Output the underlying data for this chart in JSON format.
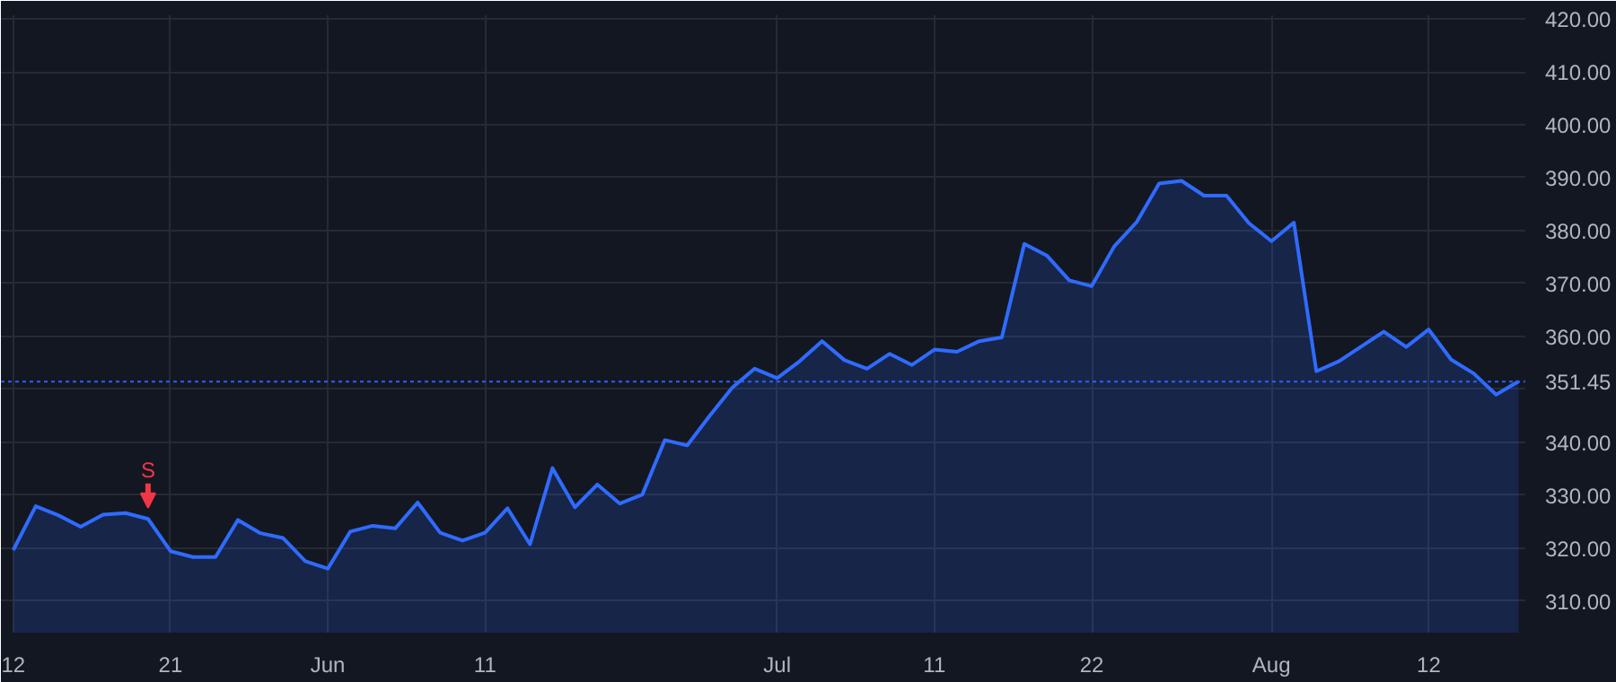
{
  "chart_data": {
    "type": "area",
    "categories": [
      "12",
      null,
      null,
      null,
      null,
      null,
      null,
      "21",
      null,
      null,
      null,
      null,
      null,
      null,
      "Jun",
      null,
      null,
      null,
      null,
      null,
      null,
      "11",
      null,
      null,
      null,
      null,
      null,
      null,
      null,
      null,
      null,
      null,
      null,
      null,
      "Jul",
      null,
      null,
      null,
      null,
      null,
      null,
      "11",
      null,
      null,
      null,
      null,
      null,
      null,
      "22",
      null,
      null,
      null,
      null,
      null,
      null,
      null,
      "Aug",
      null,
      null,
      null,
      null,
      null,
      null,
      "12",
      null,
      null,
      null,
      null
    ],
    "series": [
      {
        "color": "#2f6bff",
        "values": [
          319.6,
          327.9,
          326.2,
          324.0,
          326.3,
          326.6,
          325.5,
          319.4,
          318.3,
          318.3,
          325.3,
          322.8,
          321.9,
          317.5,
          316.1,
          323.1,
          324.2,
          323.7,
          328.6,
          322.9,
          321.4,
          322.9,
          327.5,
          320.7,
          335.1,
          327.7,
          332.0,
          328.4,
          330.1,
          340.4,
          339.4,
          345.0,
          350.3,
          353.9,
          352.1,
          355.3,
          359.1,
          355.5,
          353.9,
          356.7,
          354.6,
          357.5,
          357.1,
          359.1,
          359.8,
          377.5,
          375.3,
          370.6,
          369.5,
          377.0,
          381.6,
          388.9,
          389.4,
          386.6,
          386.6,
          381.4,
          378.0,
          381.5,
          353.4,
          355.3,
          358.1,
          360.9,
          358.0,
          361.3,
          355.6,
          353.0,
          349.0,
          351.5
        ]
      }
    ],
    "ylim": [
      304,
      420.7
    ],
    "yticks": [
      {
        "value": 310,
        "label": "310.00"
      },
      {
        "value": 320,
        "label": "320.00"
      },
      {
        "value": 330,
        "label": "330.00"
      },
      {
        "value": 340,
        "label": "340.00"
      },
      {
        "value": 350,
        "label": null
      },
      {
        "value": 360,
        "label": "360.00"
      },
      {
        "value": 370,
        "label": "370.00"
      },
      {
        "value": 380,
        "label": "380.00"
      },
      {
        "value": 390,
        "label": "390.00"
      },
      {
        "value": 400,
        "label": "400.00"
      },
      {
        "value": 410,
        "label": "410.00"
      },
      {
        "value": 420,
        "label": "420.00"
      }
    ],
    "grid": true,
    "ref_lines": [
      {
        "axis": "y",
        "value": 351.45,
        "label": "351.45",
        "color": "#2962ff",
        "line_style": "dotted"
      }
    ],
    "annotations": [
      {
        "text": "S",
        "y": 325.5
      }
    ]
  }
}
